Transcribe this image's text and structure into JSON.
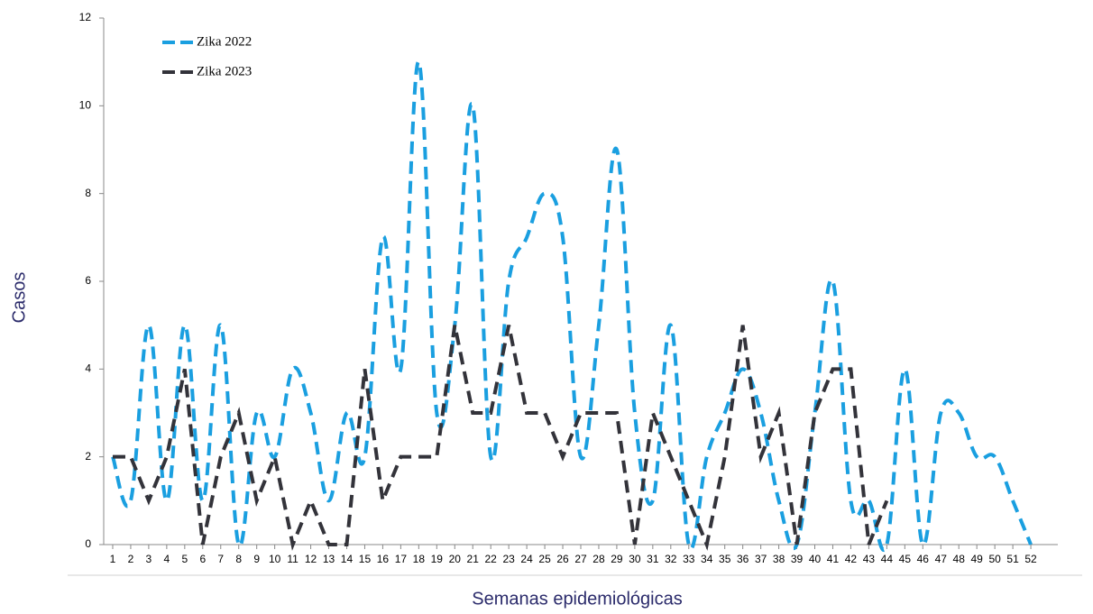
{
  "chart_data": {
    "type": "line",
    "x_label": "Semanas epidemiológicas",
    "y_label": "Casos",
    "x": [
      1,
      2,
      3,
      4,
      5,
      6,
      7,
      8,
      9,
      10,
      11,
      12,
      13,
      14,
      15,
      16,
      17,
      18,
      19,
      20,
      21,
      22,
      23,
      24,
      25,
      26,
      27,
      28,
      29,
      30,
      31,
      32,
      33,
      34,
      35,
      36,
      37,
      38,
      39,
      40,
      41,
      42,
      43,
      44,
      45,
      46,
      47,
      48,
      49,
      50,
      51,
      52
    ],
    "series": [
      {
        "name": "Zika 2022",
        "color": "#1a9fe0",
        "smooth": true,
        "values": [
          2,
          1,
          5,
          1,
          5,
          1,
          5,
          0,
          3,
          2,
          4,
          3,
          1,
          3,
          2,
          7,
          4,
          11,
          3,
          5,
          10,
          2,
          6,
          7,
          8,
          7,
          2,
          5,
          9,
          3,
          1,
          5,
          0,
          2,
          3,
          4,
          3,
          1,
          0,
          3,
          6,
          1,
          1,
          0,
          4,
          0,
          3,
          3,
          2,
          2,
          1,
          0
        ]
      },
      {
        "name": "Zika 2023",
        "color": "#33333a",
        "smooth": false,
        "values": [
          2,
          2,
          1,
          2,
          4,
          0,
          2,
          3,
          1,
          2,
          0,
          1,
          0,
          0,
          4,
          1,
          2,
          2,
          2,
          5,
          3,
          3,
          5,
          3,
          3,
          2,
          3,
          3,
          3,
          0,
          3,
          2,
          1,
          0,
          2,
          5,
          2,
          3,
          0,
          3,
          4,
          4,
          0,
          1,
          null,
          null,
          null,
          null,
          null,
          null,
          null,
          null
        ]
      }
    ],
    "xlim": [
      0.5,
      53.5
    ],
    "ylim": [
      0,
      12
    ],
    "yticks": [
      0,
      2,
      4,
      6,
      8,
      10,
      12
    ],
    "legend": "upper-left",
    "grid": false
  }
}
